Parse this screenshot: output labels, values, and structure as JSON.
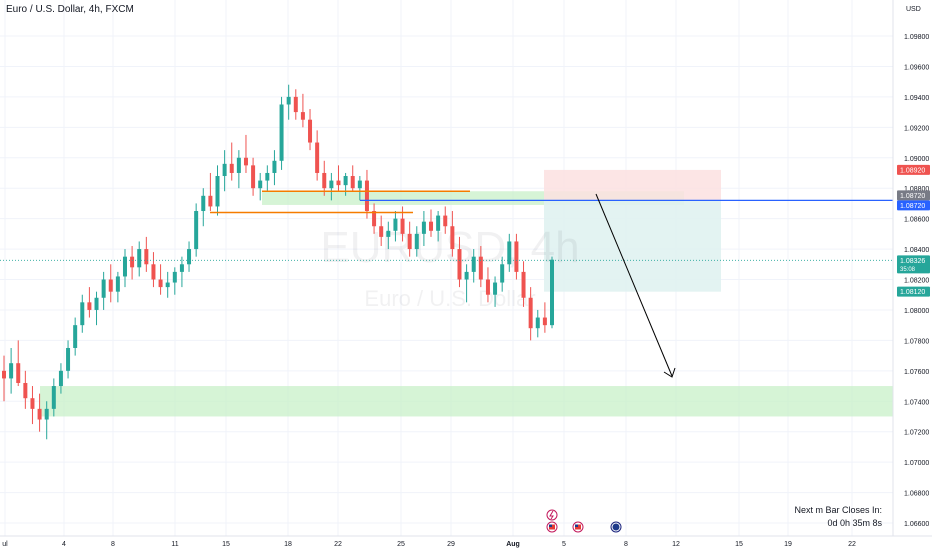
{
  "header": {
    "title": "Euro / U.S. Dollar, 4h, FXCM"
  },
  "watermark": {
    "symbol": "EURUSD, 4h",
    "name": "Euro / U.S. Dollar"
  },
  "next_bar": {
    "label": "Next m Bar Closes In:",
    "countdown": "0d 0h 35m 8s"
  },
  "colors": {
    "up": "#26a69a",
    "down": "#ef5350",
    "zone": "#c8f0c8",
    "position_stop": "#fbe0e0",
    "position_target": "#e0f2f1",
    "entry_line": "#2962ff",
    "level": "#f57c00",
    "text": "#131722"
  },
  "chart_data": {
    "type": "candlestick",
    "title": "Euro / U.S. Dollar, 4h, FXCM",
    "currency": "USD",
    "y_ticks": [
      "1.09800",
      "1.09600",
      "1.09400",
      "1.09200",
      "1.09000",
      "1.08800",
      "1.08600",
      "1.08400",
      "1.08200",
      "1.08000",
      "1.07800",
      "1.07600",
      "1.07400",
      "1.07200",
      "1.07000",
      "1.06800",
      "1.06600"
    ],
    "x_ticks": [
      "ul",
      "4",
      "8",
      "11",
      "15",
      "18",
      "22",
      "25",
      "29",
      "Aug",
      "5",
      "8",
      "12",
      "15",
      "19",
      "22"
    ],
    "price_labels": [
      {
        "text": "1.08920",
        "type": "stop"
      },
      {
        "text": "1.08720",
        "type": "entry_grey"
      },
      {
        "text": "1.08720",
        "type": "entry"
      },
      {
        "text": "1.08326",
        "sub": "35:08",
        "type": "current"
      },
      {
        "text": "1.08120",
        "type": "target"
      }
    ],
    "zones": [
      {
        "name": "demand-zone",
        "from": 1.073,
        "to": 1.075
      },
      {
        "name": "supply-zone",
        "from": 1.0869,
        "to": 1.0878
      }
    ],
    "levels": [
      {
        "name": "resistance-level-1",
        "price": 1.0878
      },
      {
        "name": "resistance-level-2",
        "price": 1.0864
      }
    ],
    "position": {
      "entry": 1.0872,
      "stop": 1.0892,
      "target": 1.0812
    },
    "current_price": 1.08326,
    "candles": [
      [
        1.076,
        1.077,
        1.074,
        1.0755
      ],
      [
        1.0755,
        1.0775,
        1.0745,
        1.0765
      ],
      [
        1.0765,
        1.078,
        1.075,
        1.0752
      ],
      [
        1.0752,
        1.076,
        1.0735,
        1.0742
      ],
      [
        1.0742,
        1.075,
        1.0725,
        1.0735
      ],
      [
        1.0735,
        1.0745,
        1.072,
        1.0728
      ],
      [
        1.0728,
        1.074,
        1.0715,
        1.0735
      ],
      [
        1.0735,
        1.0755,
        1.073,
        1.075
      ],
      [
        1.075,
        1.0765,
        1.0745,
        1.076
      ],
      [
        1.076,
        1.078,
        1.0755,
        1.0775
      ],
      [
        1.0775,
        1.0795,
        1.077,
        1.079
      ],
      [
        1.079,
        1.081,
        1.0785,
        1.0805
      ],
      [
        1.0805,
        1.0815,
        1.0795,
        1.08
      ],
      [
        1.08,
        1.0812,
        1.079,
        1.0808
      ],
      [
        1.0808,
        1.0825,
        1.08,
        1.082
      ],
      [
        1.082,
        1.083,
        1.0805,
        1.0812
      ],
      [
        1.0812,
        1.0825,
        1.0805,
        1.0822
      ],
      [
        1.0822,
        1.084,
        1.0815,
        1.0835
      ],
      [
        1.0835,
        1.0842,
        1.082,
        1.0828
      ],
      [
        1.0828,
        1.0845,
        1.0822,
        1.084
      ],
      [
        1.084,
        1.0848,
        1.0825,
        1.083
      ],
      [
        1.083,
        1.0838,
        1.0815,
        1.082
      ],
      [
        1.082,
        1.083,
        1.081,
        1.0815
      ],
      [
        1.0815,
        1.0825,
        1.0808,
        1.0818
      ],
      [
        1.0818,
        1.0828,
        1.081,
        1.0825
      ],
      [
        1.0825,
        1.0835,
        1.0815,
        1.083
      ],
      [
        1.083,
        1.0845,
        1.0825,
        1.084
      ],
      [
        1.084,
        1.087,
        1.0835,
        1.0865
      ],
      [
        1.0865,
        1.088,
        1.0855,
        1.0875
      ],
      [
        1.0875,
        1.089,
        1.0865,
        1.0868
      ],
      [
        1.0868,
        1.0895,
        1.0862,
        1.0888
      ],
      [
        1.0888,
        1.0905,
        1.0878,
        1.0896
      ],
      [
        1.0896,
        1.091,
        1.0885,
        1.089
      ],
      [
        1.089,
        1.0905,
        1.088,
        1.09
      ],
      [
        1.09,
        1.0915,
        1.089,
        1.0895
      ],
      [
        1.0895,
        1.09,
        1.0875,
        1.088
      ],
      [
        1.088,
        1.089,
        1.0872,
        1.0885
      ],
      [
        1.0885,
        1.0895,
        1.0878,
        1.089
      ],
      [
        1.089,
        1.0905,
        1.0882,
        1.0898
      ],
      [
        1.0898,
        1.094,
        1.0892,
        1.0935
      ],
      [
        1.0935,
        1.0948,
        1.0925,
        1.094
      ],
      [
        1.094,
        1.0945,
        1.0925,
        1.093
      ],
      [
        1.093,
        1.0942,
        1.092,
        1.0925
      ],
      [
        1.0925,
        1.0932,
        1.0905,
        1.091
      ],
      [
        1.091,
        1.0918,
        1.0885,
        1.089
      ],
      [
        1.089,
        1.0898,
        1.0875,
        1.088
      ],
      [
        1.088,
        1.089,
        1.0872,
        1.0885
      ],
      [
        1.0885,
        1.0895,
        1.0878,
        1.0882
      ],
      [
        1.0882,
        1.089,
        1.0875,
        1.0888
      ],
      [
        1.0888,
        1.0895,
        1.0878,
        1.088
      ],
      [
        1.088,
        1.0888,
        1.0872,
        1.0885
      ],
      [
        1.0885,
        1.0892,
        1.086,
        1.0865
      ],
      [
        1.0865,
        1.087,
        1.085,
        1.0855
      ],
      [
        1.0855,
        1.0862,
        1.0842,
        1.0848
      ],
      [
        1.0848,
        1.0858,
        1.084,
        1.0852
      ],
      [
        1.0852,
        1.0865,
        1.0845,
        1.086
      ],
      [
        1.086,
        1.0868,
        1.0845,
        1.085
      ],
      [
        1.085,
        1.0858,
        1.0835,
        1.084
      ],
      [
        1.084,
        1.0855,
        1.0835,
        1.085
      ],
      [
        1.085,
        1.0865,
        1.0842,
        1.0858
      ],
      [
        1.0858,
        1.0866,
        1.0848,
        1.0852
      ],
      [
        1.0852,
        1.0865,
        1.0845,
        1.0862
      ],
      [
        1.0862,
        1.0868,
        1.085,
        1.0855
      ],
      [
        1.0855,
        1.0865,
        1.0835,
        1.084
      ],
      [
        1.084,
        1.0848,
        1.0815,
        1.082
      ],
      [
        1.082,
        1.083,
        1.0805,
        1.0825
      ],
      [
        1.0825,
        1.084,
        1.0818,
        1.0835
      ],
      [
        1.0835,
        1.0842,
        1.0815,
        1.082
      ],
      [
        1.082,
        1.0828,
        1.0805,
        1.081
      ],
      [
        1.081,
        1.0822,
        1.0802,
        1.0818
      ],
      [
        1.0818,
        1.0835,
        1.0812,
        1.083
      ],
      [
        1.083,
        1.085,
        1.0825,
        1.0845
      ],
      [
        1.0845,
        1.085,
        1.082,
        1.0825
      ],
      [
        1.0825,
        1.0832,
        1.0802,
        1.0808
      ],
      [
        1.0808,
        1.0815,
        1.078,
        1.0788
      ],
      [
        1.0788,
        1.08,
        1.0782,
        1.0795
      ],
      [
        1.0795,
        1.0805,
        1.0785,
        1.079
      ],
      [
        1.079,
        1.0835,
        1.0788,
        1.0833
      ]
    ]
  }
}
